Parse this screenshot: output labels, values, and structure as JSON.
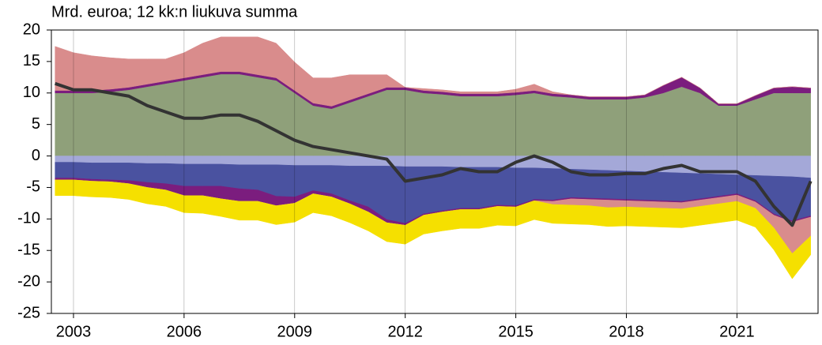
{
  "chart_data": {
    "type": "area",
    "subtitle": "Mrd. euroa; 12 kk:n liukuva summa",
    "x": [
      2002.5,
      2003,
      2003.5,
      2004,
      2004.5,
      2005,
      2005.5,
      2006,
      2006.5,
      2007,
      2007.5,
      2008,
      2008.5,
      2009,
      2009.5,
      2010,
      2010.5,
      2011,
      2011.5,
      2012,
      2012.5,
      2013,
      2013.5,
      2014,
      2014.5,
      2015,
      2015.5,
      2016,
      2016.5,
      2017,
      2017.5,
      2018,
      2018.5,
      2019,
      2019.5,
      2020,
      2020.5,
      2021,
      2021.5,
      2022,
      2022.5,
      2023
    ],
    "xlim": [
      2002.4,
      2023.2
    ],
    "xticks": [
      2003,
      2006,
      2009,
      2012,
      2015,
      2018,
      2021
    ],
    "ylim": [
      -25,
      20
    ],
    "yticks": [
      -25,
      -20,
      -15,
      -10,
      -5,
      0,
      5,
      10,
      15,
      20
    ],
    "grid": true,
    "series": [
      {
        "color": "#8fa07a",
        "values": [
          10,
          10,
          10,
          10.2,
          10.5,
          11,
          11.5,
          12,
          12.5,
          13,
          13,
          12.5,
          12,
          10,
          8,
          7.5,
          8.5,
          9.5,
          10.5,
          10.5,
          10,
          9.8,
          9.5,
          9.5,
          9.5,
          9.7,
          10,
          9.5,
          9.3,
          9,
          9,
          9,
          9.3,
          10,
          11,
          10,
          8,
          8,
          9,
          10,
          10,
          10
        ]
      },
      {
        "color": "#7b1d7e",
        "values": [
          0.4,
          0.4,
          0.4,
          0.4,
          0.4,
          0.4,
          0.4,
          0.4,
          0.4,
          0.4,
          0.4,
          0.4,
          0.4,
          0.4,
          0.4,
          0.4,
          0.4,
          0.4,
          0.4,
          0.4,
          0.4,
          0.4,
          0.4,
          0.4,
          0.4,
          0.4,
          0.4,
          0.4,
          0.4,
          0.4,
          0.4,
          0.4,
          0.4,
          1.2,
          1.5,
          0.8,
          0.3,
          0.3,
          0.6,
          0.8,
          1,
          0.8
        ]
      },
      {
        "color": "#d98c8c",
        "values": [
          7,
          6,
          5.5,
          5,
          4.5,
          4,
          3.5,
          4,
          5,
          5.5,
          5.5,
          6,
          5.5,
          4.5,
          4,
          4.5,
          4,
          3,
          2,
          0,
          0.3,
          0.3,
          0.3,
          0.3,
          0.3,
          0.5,
          1,
          0.3,
          0,
          0,
          0,
          0,
          0,
          0,
          0,
          0,
          0,
          0,
          0,
          0,
          0,
          0
        ]
      },
      {
        "color": "#a4a8d8",
        "values": [
          -1,
          -1,
          -1.1,
          -1.1,
          -1.1,
          -1.2,
          -1.2,
          -1.3,
          -1.3,
          -1.3,
          -1.4,
          -1.4,
          -1.4,
          -1.5,
          -1.5,
          -1.5,
          -1.6,
          -1.6,
          -1.6,
          -1.7,
          -1.7,
          -1.7,
          -1.8,
          -1.8,
          -1.8,
          -1.9,
          -1.9,
          -2,
          -2.1,
          -2.2,
          -2.3,
          -2.4,
          -2.5,
          -2.6,
          -2.7,
          -2.8,
          -2.9,
          -3,
          -3.1,
          -3.2,
          -3.3,
          -3.5
        ]
      },
      {
        "color": "#4a52a0",
        "values": [
          -2.5,
          -2.5,
          -2.6,
          -2.7,
          -2.8,
          -3,
          -3.2,
          -3.5,
          -3.5,
          -3.5,
          -3.8,
          -4,
          -5,
          -5,
          -4,
          -4.5,
          -5.5,
          -6.5,
          -8.5,
          -9,
          -7.5,
          -7,
          -6.5,
          -6.5,
          -6,
          -6,
          -5,
          -5,
          -4.5,
          -4.5,
          -4.5,
          -4.5,
          -4.5,
          -4.5,
          -4.5,
          -4,
          -3.5,
          -3,
          -4,
          -6,
          -7,
          -6
        ]
      },
      {
        "color": "#7b1d7e",
        "values": [
          -0.3,
          -0.3,
          -0.3,
          -0.3,
          -0.5,
          -0.8,
          -1,
          -1.5,
          -1.5,
          -2,
          -2,
          -1.8,
          -1.5,
          -1,
          -0.5,
          -0.5,
          -0.5,
          -0.8,
          -0.5,
          -0.3,
          -0.2,
          -0.2,
          -0.2,
          -0.2,
          -0.2,
          -0.2,
          -0.2,
          -0.2,
          -0.2,
          -0.2,
          -0.2,
          -0.2,
          -0.2,
          -0.2,
          -0.2,
          -0.2,
          -0.2,
          -0.2,
          -0.2,
          -0.2,
          -0.2,
          -0.2
        ]
      },
      {
        "color": "#d98c8c",
        "values": [
          0,
          0,
          0,
          0,
          0,
          0,
          0,
          0,
          0,
          0,
          0,
          0,
          0,
          0,
          0,
          0,
          0,
          0,
          0,
          0,
          0,
          0,
          0,
          0,
          0,
          0,
          0,
          -0.5,
          -1,
          -1,
          -1.2,
          -1,
          -1,
          -1,
          -1,
          -1,
          -1,
          -1,
          -1,
          -2,
          -5,
          -3
        ]
      },
      {
        "color": "#f5e000",
        "values": [
          -2.5,
          -2.5,
          -2.5,
          -2.5,
          -2.5,
          -2.6,
          -2.6,
          -2.7,
          -2.8,
          -2.8,
          -3,
          -3,
          -3,
          -3,
          -3,
          -3,
          -3,
          -3,
          -3,
          -3,
          -3,
          -3,
          -3,
          -3,
          -3,
          -3,
          -3,
          -3,
          -3,
          -3,
          -3,
          -3,
          -3,
          -3,
          -3,
          -3,
          -3,
          -3,
          -3,
          -3.5,
          -4,
          -3
        ]
      },
      {
        "type": "line",
        "color": "#333333",
        "values": [
          11.5,
          10.5,
          10.5,
          10,
          9.5,
          8,
          7,
          6,
          6,
          6.5,
          6.5,
          5.5,
          4,
          2.5,
          1.5,
          1,
          0.5,
          0,
          -0.5,
          -4,
          -3.5,
          -3,
          -2,
          -2.5,
          -2.5,
          -1,
          0,
          -1,
          -2.5,
          -3,
          -3,
          -2.8,
          -2.8,
          -2,
          -1.5,
          -2.5,
          -2.5,
          -2.5,
          -4,
          -8,
          -11,
          -4
        ]
      }
    ]
  }
}
